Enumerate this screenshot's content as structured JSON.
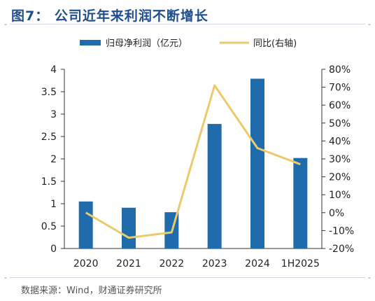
{
  "figure": {
    "title": "图7：  公司近年来利润不断增长",
    "source": "数据来源：Wind，财通证券研究所",
    "colors": {
      "title": "#1f4e8c",
      "bar": "#1f6bab",
      "line": "#e9cb6b"
    }
  },
  "chart_data": {
    "type": "bar",
    "categories": [
      "2020",
      "2021",
      "2022",
      "2023",
      "2024",
      "1H2025"
    ],
    "series": [
      {
        "name": "归母净利润（亿元）",
        "type": "bar",
        "axis": "left",
        "values": [
          1.05,
          0.91,
          0.81,
          2.78,
          3.79,
          2.02
        ]
      },
      {
        "name": "同比(右轴)",
        "type": "line",
        "axis": "right",
        "values": [
          0,
          -14,
          -11,
          71,
          36,
          27
        ]
      }
    ],
    "left_axis": {
      "ylim": [
        0,
        4
      ],
      "ticks": [
        "0",
        "0.5",
        "1",
        "1.5",
        "2",
        "2.5",
        "3",
        "3.5",
        "4"
      ]
    },
    "right_axis": {
      "ylim": [
        -20,
        80
      ],
      "ticks": [
        "-20%",
        "-10%",
        "0%",
        "10%",
        "20%",
        "30%",
        "40%",
        "50%",
        "60%",
        "70%",
        "80%"
      ]
    },
    "legend_position": "top",
    "grid": false
  }
}
